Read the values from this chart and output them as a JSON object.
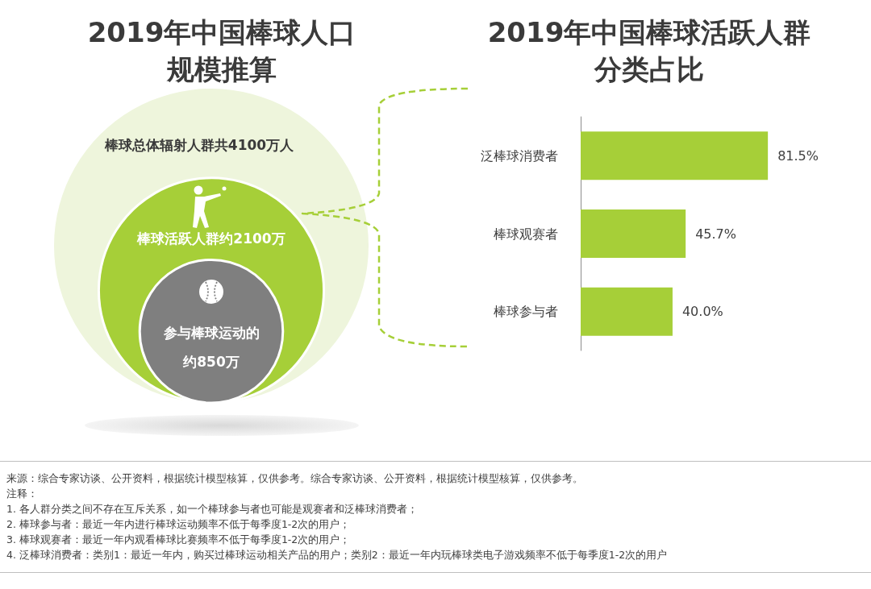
{
  "chart_data": [
    {
      "type": "other",
      "title": "2019年中国棒球人口规模推算",
      "categories": [
        "棒球总体辐射人群共",
        "棒球活跃人群约",
        "参与棒球运动的约"
      ],
      "values": [
        4100,
        2100,
        850
      ],
      "value_labels": [
        "4100万人",
        "2100万",
        "850万"
      ],
      "colors": [
        "#eef5dc",
        "#a6cf38",
        "#7f7f7f"
      ],
      "annotations": [
        "来源：综合专家访谈、公开资料，根据统计模型核算，仅供参考。综合专家访谈、公开资料，根据统计模型核算，仅供参考。",
        "注释：",
        "1. 各人群分类之间不存在互斥关系，如一个棒球参与者也可能是观赛者和泛棒球消费者；",
        "2. 棒球参与者：最近一年内进行棒球运动频率不低于每季度1-2次的用户；",
        "3. 棒球观赛者：最近一年内观看棒球比赛频率不低于每季度1-2次的用户；",
        "4. 泛棒球消费者：类别1：最近一年内，购买过棒球运动相关产品的用户；类别2：最近一年内玩棒球类电子游戏频率不低于每季度1-2次的用户"
      ]
    },
    {
      "type": "bar",
      "orientation": "horizontal",
      "title": "2019年中国棒球活跃人群分类占比",
      "categories": [
        "泛棒球消费者",
        "棒球观赛者",
        "棒球参与者"
      ],
      "values": [
        81.5,
        45.7,
        40.0
      ],
      "value_labels": [
        "81.5%",
        "45.7%",
        "40.0%"
      ],
      "color": "#a6cf38"
    }
  ]
}
